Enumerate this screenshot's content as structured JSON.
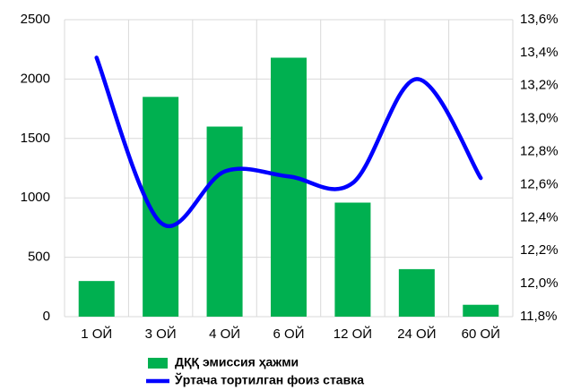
{
  "chart_data": {
    "type": "bar_line",
    "categories": [
      "1 ОЙ",
      "3 ОЙ",
      "4 ОЙ",
      "6 ОЙ",
      "12 ОЙ",
      "24 ОЙ",
      "60 ОЙ"
    ],
    "series": [
      {
        "name": "ДҚҚ эмиссия ҳажми",
        "type": "bar",
        "color": "#00b050",
        "values": [
          300,
          1850,
          1600,
          2180,
          960,
          400,
          100
        ]
      },
      {
        "name": "Ўртача тортилган фоиз ставка",
        "type": "line",
        "axis": "y2",
        "color": "#0000ff",
        "values": [
          13.37,
          12.37,
          12.68,
          12.65,
          12.61,
          13.24,
          12.64
        ]
      }
    ],
    "ylim": [
      0,
      2500
    ],
    "yticks": [
      0,
      500,
      1000,
      1500,
      2000,
      2500
    ],
    "y2lim": [
      11.8,
      13.6
    ],
    "y2ticks": [
      {
        "value": 11.8,
        "label": "11,8%"
      },
      {
        "value": 12.0,
        "label": "12,0%"
      },
      {
        "value": 12.2,
        "label": "12,2%"
      },
      {
        "value": 12.4,
        "label": "12,4%"
      },
      {
        "value": 12.6,
        "label": "12,6%"
      },
      {
        "value": 12.8,
        "label": "12,8%"
      },
      {
        "value": 13.0,
        "label": "13,0%"
      },
      {
        "value": 13.2,
        "label": "13,2%"
      },
      {
        "value": 13.4,
        "label": "13,4%"
      },
      {
        "value": 13.6,
        "label": "13,6%"
      }
    ],
    "grid": true,
    "legend": "bottom"
  }
}
